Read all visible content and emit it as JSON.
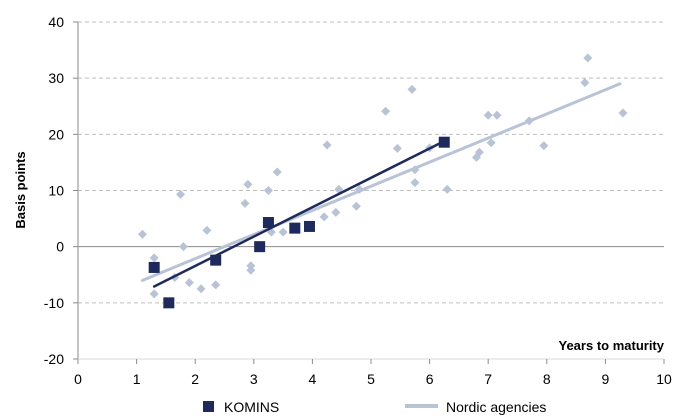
{
  "chart_data": {
    "type": "scatter",
    "title": "",
    "xlabel": "Years to maturity",
    "ylabel": "Basis points",
    "xlim": [
      0,
      10
    ],
    "ylim": [
      -20,
      40
    ],
    "x_ticks": [
      "0",
      "1",
      "2",
      "3",
      "4",
      "5",
      "6",
      "7",
      "8",
      "9",
      "10"
    ],
    "y_ticks": [
      "-20",
      "-10",
      "0",
      "10",
      "20",
      "30",
      "40"
    ],
    "grid": "horizontal dashed",
    "legend_position": "bottom",
    "series": [
      {
        "name": "KOMINS",
        "kind": "scatter",
        "marker": "square",
        "color": "#1f2a5c",
        "points": [
          [
            1.3,
            -3.7
          ],
          [
            1.55,
            -10
          ],
          [
            2.35,
            -2.4
          ],
          [
            3.1,
            0
          ],
          [
            3.25,
            4.3
          ],
          [
            3.7,
            3.3
          ],
          [
            3.95,
            3.6
          ],
          [
            6.25,
            18.6
          ]
        ]
      },
      {
        "name": "KOMINS fit",
        "kind": "line",
        "color": "#1f2a5c",
        "points": [
          [
            1.3,
            -7.1
          ],
          [
            6.25,
            18.8
          ]
        ]
      },
      {
        "name": "Nordic agencies",
        "kind": "scatter",
        "marker": "diamond",
        "color": "#b8c3d6",
        "points": [
          [
            1.1,
            2.2
          ],
          [
            1.3,
            -2
          ],
          [
            1.3,
            -8.4
          ],
          [
            1.65,
            -5.5
          ],
          [
            1.75,
            9.3
          ],
          [
            1.8,
            0
          ],
          [
            1.9,
            -6.4
          ],
          [
            2.1,
            -7.5
          ],
          [
            2.2,
            2.9
          ],
          [
            2.35,
            -6.8
          ],
          [
            2.85,
            7.7
          ],
          [
            2.9,
            11.1
          ],
          [
            2.95,
            -4.2
          ],
          [
            2.95,
            -3.4
          ],
          [
            3.25,
            10
          ],
          [
            3.3,
            2.6
          ],
          [
            3.4,
            13.3
          ],
          [
            3.5,
            2.6
          ],
          [
            4.2,
            5.3
          ],
          [
            4.25,
            18.1
          ],
          [
            4.4,
            6.1
          ],
          [
            4.45,
            10.2
          ],
          [
            4.75,
            7.2
          ],
          [
            4.8,
            10.2
          ],
          [
            5.25,
            24.1
          ],
          [
            5.45,
            17.5
          ],
          [
            5.7,
            28
          ],
          [
            5.75,
            13.7
          ],
          [
            5.75,
            11.4
          ],
          [
            6,
            17.6
          ],
          [
            6.3,
            10.2
          ],
          [
            6.8,
            15.9
          ],
          [
            6.85,
            16.8
          ],
          [
            7,
            23.4
          ],
          [
            7.05,
            18.5
          ],
          [
            7.15,
            23.4
          ],
          [
            7.7,
            22.4
          ],
          [
            7.95,
            18
          ],
          [
            8.65,
            29.2
          ],
          [
            8.7,
            33.6
          ],
          [
            9.3,
            23.8
          ]
        ]
      },
      {
        "name": "Nordic agencies",
        "kind": "line",
        "color": "#b8c3d6",
        "points": [
          [
            1.1,
            -6
          ],
          [
            9.25,
            29
          ]
        ]
      }
    ],
    "legend": [
      {
        "label": "KOMINS",
        "symbol": "square",
        "color": "#1f2a5c"
      },
      {
        "label": "Nordic agencies",
        "symbol": "line",
        "color": "#b8c3d6"
      }
    ]
  }
}
